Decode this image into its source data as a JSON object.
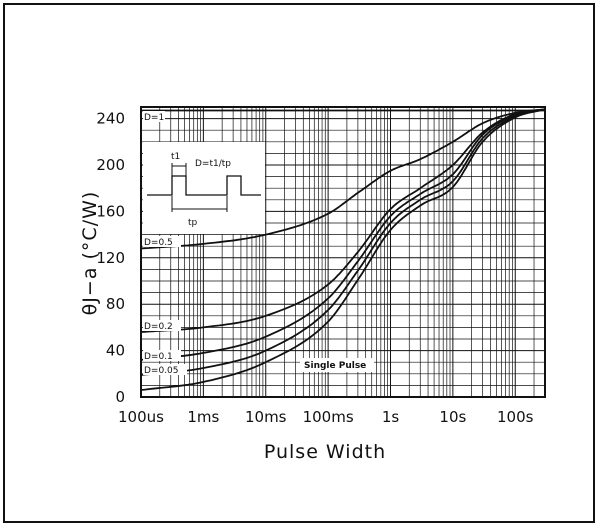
{
  "chart_data": {
    "type": "line",
    "title": "",
    "xlabel": "Pulse Width",
    "ylabel": "θJ−a (°C/W)",
    "x_scale": "log",
    "x_unit": "s",
    "xlim": [
      0.0001,
      300
    ],
    "ylim": [
      0,
      250
    ],
    "x_ticks": [
      {
        "value": 0.0001,
        "label": "100us"
      },
      {
        "value": 0.001,
        "label": "1ms"
      },
      {
        "value": 0.01,
        "label": "10ms"
      },
      {
        "value": 0.1,
        "label": "100ms"
      },
      {
        "value": 1,
        "label": "1s"
      },
      {
        "value": 10,
        "label": "10s"
      },
      {
        "value": 100,
        "label": "100s"
      }
    ],
    "y_ticks": [
      0,
      40,
      80,
      120,
      160,
      200,
      240
    ],
    "grid": true,
    "series": [
      {
        "name": "D=1",
        "x": [
          0.0001,
          0.001,
          0.01,
          0.1,
          1,
          10,
          100,
          300
        ],
        "y": [
          247,
          247,
          247,
          247,
          247,
          247,
          247,
          247
        ]
      },
      {
        "name": "D=0.5",
        "x": [
          0.0001,
          0.001,
          0.01,
          0.1,
          0.3,
          1,
          3,
          10,
          30,
          100,
          300
        ],
        "y": [
          128,
          132,
          140,
          158,
          176,
          195,
          205,
          220,
          236,
          245,
          248
        ]
      },
      {
        "name": "D=0.2",
        "x": [
          0.0001,
          0.001,
          0.01,
          0.1,
          0.3,
          1,
          3,
          10,
          30,
          100,
          300
        ],
        "y": [
          56,
          60,
          70,
          97,
          125,
          162,
          180,
          200,
          228,
          244,
          248
        ]
      },
      {
        "name": "D=0.1",
        "x": [
          0.0001,
          0.001,
          0.01,
          0.1,
          0.3,
          1,
          3,
          10,
          30,
          100,
          300
        ],
        "y": [
          32,
          38,
          52,
          85,
          117,
          156,
          175,
          192,
          226,
          243,
          248
        ]
      },
      {
        "name": "D=0.05",
        "x": [
          0.0001,
          0.001,
          0.01,
          0.1,
          0.3,
          1,
          3,
          10,
          30,
          100,
          300
        ],
        "y": [
          19,
          25,
          40,
          75,
          109,
          150,
          170,
          186,
          223,
          242,
          248
        ]
      },
      {
        "name": "Single Pulse",
        "x": [
          0.0001,
          0.001,
          0.01,
          0.1,
          0.3,
          1,
          3,
          10,
          30,
          100,
          300
        ],
        "y": [
          6,
          13,
          30,
          65,
          101,
          144,
          165,
          181,
          220,
          241,
          248
        ]
      }
    ],
    "labels": {
      "d1": "D=1",
      "d05": "D=0.5",
      "d02": "D=0.2",
      "d01": "D=0.1",
      "d005": "D=0.05",
      "single": "Single Pulse"
    },
    "inset": {
      "t1": "t1",
      "tp": "tp",
      "formula": "D=t1/tp"
    }
  }
}
